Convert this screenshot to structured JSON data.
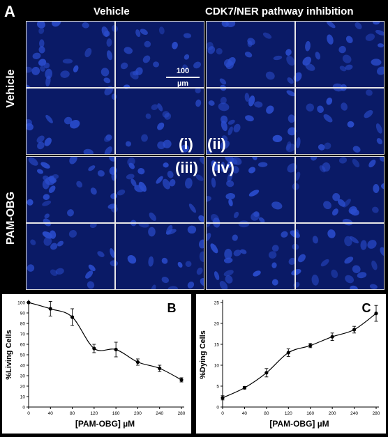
{
  "panel_a": {
    "letter": "A",
    "col_vehicle": "Vehicle",
    "col_inhibition": "CDK7/NER pathway inhibition",
    "row_vehicle": "Vehicle",
    "row_pamobg": "PAM-OBG",
    "label_i": "(i)",
    "label_ii": "(ii)",
    "label_iii": "(iii)",
    "label_iv": "(iv)",
    "scale_value": "100",
    "scale_unit": "µm",
    "image_color": "#0a1a66",
    "nucleus_color": "#2a4ccc"
  },
  "chart_data": [
    {
      "panel": "B",
      "type": "line",
      "xlabel": "[PAM-OBG] µM",
      "ylabel": "%Living Cells",
      "x": [
        0,
        40,
        80,
        120,
        160,
        200,
        240,
        280
      ],
      "xticks": [
        0,
        40,
        80,
        120,
        160,
        200,
        240,
        280
      ],
      "xlim": [
        0,
        280
      ],
      "ylim": [
        0,
        100
      ],
      "yticks": [
        0,
        10,
        20,
        30,
        40,
        50,
        60,
        70,
        80,
        90,
        100
      ],
      "series": [
        {
          "values": [
            100,
            94,
            86,
            56,
            55,
            43,
            37,
            26
          ],
          "errors": [
            0,
            7,
            8,
            4,
            7,
            3,
            3,
            2
          ]
        }
      ],
      "grid": false
    },
    {
      "panel": "C",
      "type": "line",
      "xlabel": "[PAM-OBG] µM",
      "ylabel": "%Dying Cells",
      "x": [
        0,
        40,
        80,
        120,
        160,
        200,
        240,
        280
      ],
      "xticks": [
        0,
        40,
        80,
        120,
        160,
        200,
        240,
        280
      ],
      "xlim": [
        0,
        280
      ],
      "ylim": [
        0,
        25
      ],
      "yticks": [
        0,
        5,
        10,
        15,
        20,
        25
      ],
      "series": [
        {
          "values": [
            2.2,
            4.6,
            8.2,
            13.0,
            14.7,
            16.8,
            18.5,
            22.4
          ],
          "errors": [
            0.5,
            0.3,
            1.0,
            0.9,
            0.5,
            0.9,
            0.8,
            1.9
          ]
        }
      ],
      "grid": false
    }
  ]
}
